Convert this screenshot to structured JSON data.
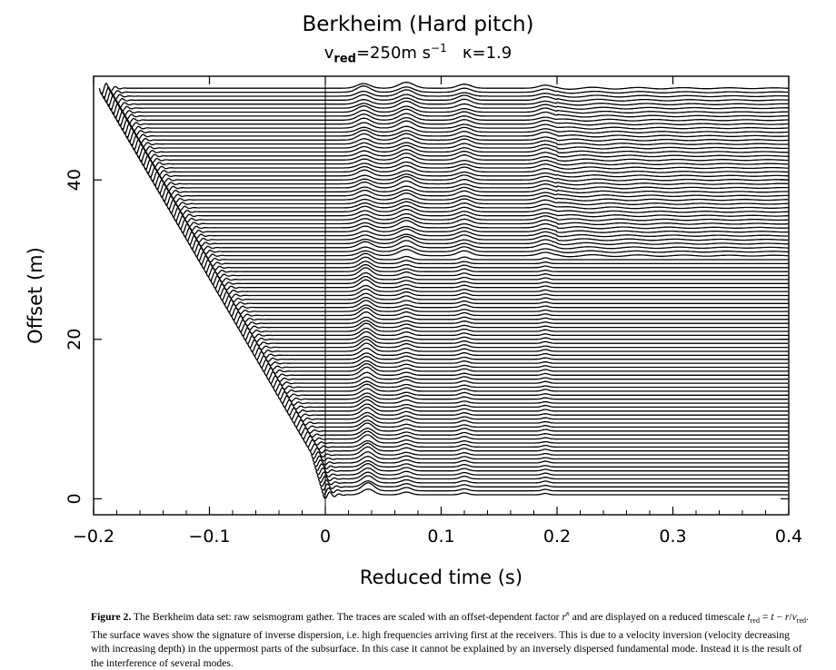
{
  "chart_data": {
    "type": "line",
    "title": "Berkheim (Hard pitch)",
    "subtitle": {
      "v": "v",
      "v_sub": "red",
      "speed": "=250m s",
      "speed_sup": "−1",
      "kappa_text": "κ=1.9"
    },
    "xlabel": "Reduced time (s)",
    "ylabel": "Offset (m)",
    "xlim": [
      -0.2,
      0.4
    ],
    "ylim": [
      -2,
      53
    ],
    "xticks": [
      -0.2,
      -0.1,
      0,
      0.1,
      0.2,
      0.3,
      0.4
    ],
    "xtick_labels": [
      "−0.2",
      "−0.1",
      "0",
      "0.1",
      "0.2",
      "0.3",
      "0.4"
    ],
    "yticks": [
      0,
      20,
      40
    ],
    "ytick_labels": [
      "0",
      "20",
      "40"
    ],
    "trace_offsets_m": [
      0.5,
      1,
      1.5,
      2,
      2.5,
      3,
      3.5,
      4,
      4.5,
      5,
      5.5,
      6,
      6.5,
      7,
      7.5,
      8,
      8.5,
      9,
      9.5,
      10,
      10.5,
      11,
      11.5,
      12,
      12.5,
      13,
      13.5,
      14,
      14.5,
      15,
      15.5,
      16,
      16.5,
      17,
      17.5,
      18,
      18.5,
      19,
      19.5,
      20,
      20.5,
      21,
      21.5,
      22,
      22.5,
      23,
      23.5,
      24,
      24.5,
      25,
      25.5,
      26,
      26.5,
      27,
      27.5,
      28,
      28.5,
      29,
      29.5,
      30,
      30.5,
      31,
      31.5,
      32,
      32.5,
      33,
      33.5,
      34,
      34.5,
      35,
      35.5,
      36,
      36.5,
      37,
      37.5,
      38,
      38.5,
      39,
      39.5,
      40,
      40.5,
      41,
      41.5,
      42,
      42.5,
      43,
      43.5,
      44,
      44.5,
      45,
      45.5,
      46,
      46.5,
      47,
      47.5,
      48,
      48.5,
      49,
      49.5,
      50,
      50.5,
      51,
      51.5
    ],
    "trace_start_time_s": [
      -0.002,
      -0.003,
      -0.004,
      -0.005,
      -0.006,
      -0.007,
      -0.008,
      -0.009,
      -0.01,
      -0.011,
      -0.012,
      -0.013,
      -0.015,
      -0.017,
      -0.019,
      -0.021,
      -0.023,
      -0.025,
      -0.027,
      -0.029,
      -0.031,
      -0.033,
      -0.035,
      -0.037,
      -0.039,
      -0.041,
      -0.043,
      -0.045,
      -0.047,
      -0.049,
      -0.051,
      -0.053,
      -0.055,
      -0.057,
      -0.059,
      -0.061,
      -0.063,
      -0.065,
      -0.067,
      -0.069,
      -0.071,
      -0.073,
      -0.075,
      -0.077,
      -0.079,
      -0.081,
      -0.083,
      -0.085,
      -0.087,
      -0.089,
      -0.091,
      -0.093,
      -0.095,
      -0.097,
      -0.099,
      -0.101,
      -0.103,
      -0.105,
      -0.107,
      -0.109,
      -0.111,
      -0.113,
      -0.115,
      -0.117,
      -0.119,
      -0.121,
      -0.123,
      -0.125,
      -0.127,
      -0.129,
      -0.131,
      -0.133,
      -0.135,
      -0.137,
      -0.139,
      -0.141,
      -0.143,
      -0.145,
      -0.147,
      -0.149,
      -0.151,
      -0.153,
      -0.155,
      -0.157,
      -0.159,
      -0.161,
      -0.163,
      -0.165,
      -0.167,
      -0.169,
      -0.171,
      -0.173,
      -0.175,
      -0.177,
      -0.179,
      -0.181,
      -0.183,
      -0.185,
      -0.187,
      -0.189,
      -0.191,
      -0.193,
      -0.195
    ],
    "surface_wave_arrival_times_s": [
      0.033,
      0.07,
      0.12,
      0.19
    ],
    "grid": false,
    "legend": "none",
    "color": "#000000"
  },
  "caption": {
    "label": "Figure 2.",
    "p1": " The Berkheim data set: raw seismogram gather. The traces are scaled with an offset-dependent factor ",
    "r": "r",
    "kappa": "κ",
    "p2": " and are displayed on a reduced timescale ",
    "t": "t",
    "red": "red",
    "p3": " = ",
    "t2": "t",
    "p4": " − ",
    "r2": "r",
    "p5": "/",
    "v": "v",
    "red2": "red",
    "p6": ". The surface waves show the signature of inverse dispersion, i.e. high frequencies arriving first at the receivers. This is due to a velocity inversion (velocity decreasing with increasing depth) in the uppermost parts of the subsurface. In this case it cannot be explained by an inversely dispersed fundamental mode. Instead it is the result of the interference of several modes."
  }
}
